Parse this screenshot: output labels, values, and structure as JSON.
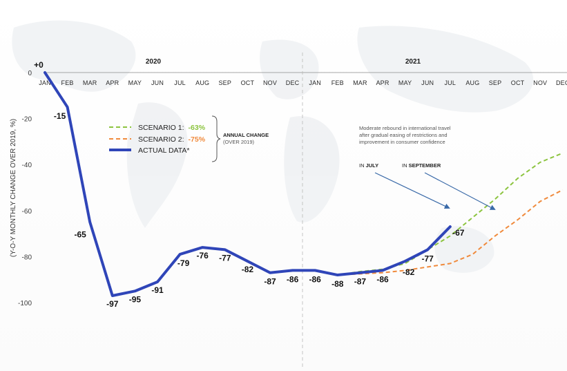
{
  "chart_data": {
    "type": "line",
    "ylabel": "(Y-O-Y MONTHLY CHANGE OVER 2019, %)",
    "ylim": [
      -100,
      0
    ],
    "yticks": [
      0,
      -20,
      -40,
      -60,
      -80,
      -100
    ],
    "years": [
      "2020",
      "2021"
    ],
    "months": [
      "JAN",
      "FEB",
      "MAR",
      "APR",
      "MAY",
      "JUN",
      "JUL",
      "AUG",
      "SEP",
      "OCT",
      "NOV",
      "DEC",
      "JAN",
      "FEB",
      "MAR",
      "APR",
      "MAY",
      "JUN",
      "JUL",
      "AUG",
      "SEP",
      "OCT",
      "NOV",
      "DEC"
    ],
    "actual": {
      "name": "ACTUAL DATA*",
      "color": "#2f45b8",
      "values": [
        0,
        -15,
        -65,
        -97,
        -95,
        -91,
        -79,
        -76,
        -77,
        -82,
        -87,
        -86,
        -86,
        -88,
        -87,
        -86,
        -82,
        -77,
        -67
      ],
      "labels": [
        "+0",
        "-15",
        "-65",
        "-97",
        "-95",
        "-91",
        "-79",
        "-76",
        "-77",
        "-82",
        "-87",
        "-86",
        "-86",
        "-88",
        "-87",
        "-86",
        "-82",
        "-77",
        "-67"
      ]
    },
    "scenarios": [
      {
        "name": "SCENARIO 1:",
        "annual_change": "-63%",
        "color": "#8cc43f",
        "x": [
          13,
          14,
          15,
          16,
          17,
          18,
          19,
          20,
          21,
          22,
          23
        ],
        "values": [
          -88,
          -86.5,
          -85.5,
          -83,
          -77,
          -71,
          -63,
          -55,
          -46,
          -39,
          -35
        ]
      },
      {
        "name": "SCENARIO 2:",
        "annual_change": "-75%",
        "color": "#f08a3c",
        "x": [
          13,
          14,
          15,
          16,
          17,
          18,
          19,
          20,
          21,
          22,
          23
        ],
        "values": [
          -88,
          -87.5,
          -87,
          -86,
          -84.5,
          -83,
          -79,
          -71,
          -64,
          -56,
          -51
        ]
      }
    ],
    "annual_change_title": "ANNUAL CHANGE",
    "annual_change_sub": "(OVER 2019)",
    "annotation": [
      "Moderate rebound in international travel",
      "after gradual easing of restrictions and",
      "improvement in consumer confidence"
    ],
    "in_july_prefix": "IN ",
    "in_july_bold": "JULY",
    "in_sept_prefix": "IN ",
    "in_sept_bold": "SEPTEMBER"
  }
}
